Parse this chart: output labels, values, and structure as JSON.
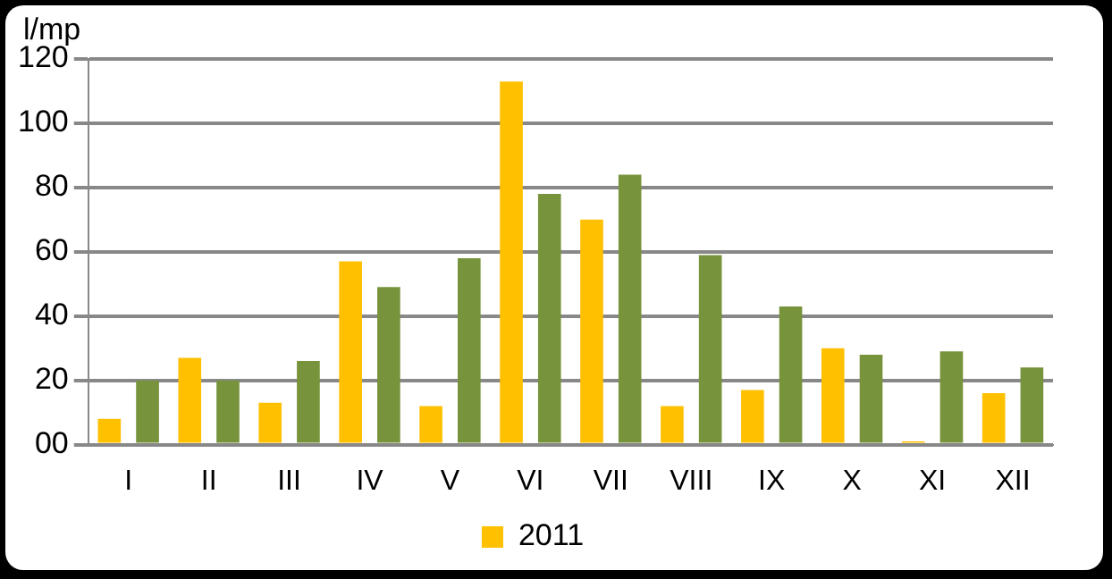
{
  "chart_data": {
    "type": "bar",
    "ylabel": "l/mp",
    "categories": [
      "I",
      "II",
      "III",
      "IV",
      "V",
      "VI",
      "VII",
      "VIII",
      "IX",
      "X",
      "XI",
      "XII"
    ],
    "series": [
      {
        "name": "2011",
        "color": "#ffc000",
        "values": [
          8,
          27,
          13,
          57,
          12,
          113,
          70,
          12,
          17,
          30,
          1,
          16
        ]
      },
      {
        "color": "#77933c",
        "values": [
          20,
          20,
          26,
          49,
          58,
          78,
          84,
          59,
          43,
          28,
          29,
          24
        ]
      }
    ],
    "ylim": [
      0,
      120
    ],
    "yticks": [
      {
        "value": 0,
        "label": "00"
      },
      20,
      40,
      60,
      80,
      100,
      120
    ],
    "grid": "y",
    "legend": "bottom"
  }
}
